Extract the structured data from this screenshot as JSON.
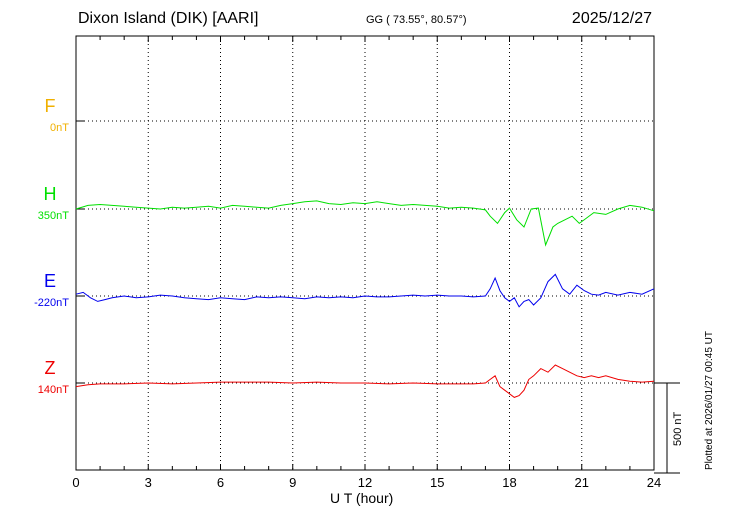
{
  "header": {
    "title": "Dixon Island (DIK)  [AARI]",
    "coords": "GG ( 73.55°,  80.57°)",
    "date": "2025/12/27"
  },
  "plotted_note": "Plotted at 2026/01/27 00:45 UT",
  "scale_bar": {
    "label": "500 nT",
    "value_nT": 500
  },
  "chart_data": {
    "type": "line",
    "xlabel": "U T (hour)",
    "xlim": [
      0,
      24
    ],
    "xticks": [
      0,
      3,
      6,
      9,
      12,
      15,
      18,
      21,
      24
    ],
    "grid": true,
    "components": [
      {
        "letter": "F",
        "baseline": "0nT",
        "color": "#f0b000",
        "values": []
      },
      {
        "letter": "H",
        "baseline": "350nT",
        "color": "#00e000",
        "values": [
          [
            0,
            0
          ],
          [
            0.5,
            20
          ],
          [
            1,
            25
          ],
          [
            1.5,
            20
          ],
          [
            2,
            15
          ],
          [
            2.5,
            10
          ],
          [
            3,
            5
          ],
          [
            3.5,
            0
          ],
          [
            4,
            10
          ],
          [
            4.5,
            5
          ],
          [
            5,
            10
          ],
          [
            5.5,
            15
          ],
          [
            6,
            5
          ],
          [
            6.5,
            20
          ],
          [
            7,
            15
          ],
          [
            7.5,
            10
          ],
          [
            8,
            5
          ],
          [
            8.5,
            20
          ],
          [
            9,
            30
          ],
          [
            9.5,
            40
          ],
          [
            10,
            45
          ],
          [
            10.5,
            30
          ],
          [
            11,
            25
          ],
          [
            11.5,
            35
          ],
          [
            12,
            30
          ],
          [
            12.5,
            40
          ],
          [
            13,
            30
          ],
          [
            13.5,
            20
          ],
          [
            14,
            25
          ],
          [
            14.5,
            20
          ],
          [
            15,
            15
          ],
          [
            15.5,
            5
          ],
          [
            16,
            10
          ],
          [
            16.5,
            5
          ],
          [
            17,
            -5
          ],
          [
            17.2,
            -40
          ],
          [
            17.5,
            -80
          ],
          [
            17.8,
            -20
          ],
          [
            18,
            5
          ],
          [
            18.3,
            -60
          ],
          [
            18.6,
            -100
          ],
          [
            18.9,
            0
          ],
          [
            19.2,
            5
          ],
          [
            19.5,
            -200
          ],
          [
            19.8,
            -100
          ],
          [
            20,
            -80
          ],
          [
            20.3,
            -60
          ],
          [
            20.6,
            -40
          ],
          [
            20.9,
            -80
          ],
          [
            21.2,
            -50
          ],
          [
            21.5,
            -20
          ],
          [
            22,
            -30
          ],
          [
            22.5,
            0
          ],
          [
            23,
            20
          ],
          [
            23.5,
            10
          ],
          [
            24,
            -10
          ]
        ]
      },
      {
        "letter": "E",
        "baseline": "-220nT",
        "color": "#0000ee",
        "values": [
          [
            0,
            10
          ],
          [
            0.3,
            20
          ],
          [
            0.6,
            -10
          ],
          [
            0.9,
            -30
          ],
          [
            1.2,
            -20
          ],
          [
            1.5,
            -10
          ],
          [
            2,
            0
          ],
          [
            2.5,
            -10
          ],
          [
            3,
            -5
          ],
          [
            3.5,
            5
          ],
          [
            4,
            0
          ],
          [
            4.5,
            -10
          ],
          [
            5,
            -15
          ],
          [
            5.5,
            -20
          ],
          [
            6,
            -10
          ],
          [
            6.5,
            -15
          ],
          [
            7,
            -20
          ],
          [
            7.5,
            -5
          ],
          [
            8,
            -10
          ],
          [
            8.5,
            -5
          ],
          [
            9,
            -10
          ],
          [
            9.5,
            -15
          ],
          [
            10,
            -5
          ],
          [
            10.5,
            -10
          ],
          [
            11,
            -5
          ],
          [
            11.5,
            -10
          ],
          [
            12,
            0
          ],
          [
            12.5,
            -5
          ],
          [
            13,
            -5
          ],
          [
            13.5,
            0
          ],
          [
            14,
            5
          ],
          [
            14.5,
            0
          ],
          [
            15,
            5
          ],
          [
            15.5,
            0
          ],
          [
            16,
            0
          ],
          [
            16.5,
            -5
          ],
          [
            17,
            0
          ],
          [
            17.2,
            40
          ],
          [
            17.4,
            100
          ],
          [
            17.6,
            30
          ],
          [
            17.8,
            -10
          ],
          [
            18,
            -30
          ],
          [
            18.2,
            -10
          ],
          [
            18.4,
            -60
          ],
          [
            18.6,
            -30
          ],
          [
            18.8,
            -20
          ],
          [
            19,
            -50
          ],
          [
            19.3,
            -10
          ],
          [
            19.6,
            80
          ],
          [
            19.9,
            120
          ],
          [
            20.2,
            40
          ],
          [
            20.5,
            10
          ],
          [
            20.8,
            60
          ],
          [
            21.1,
            30
          ],
          [
            21.4,
            10
          ],
          [
            21.7,
            5
          ],
          [
            22,
            20
          ],
          [
            22.5,
            5
          ],
          [
            23,
            20
          ],
          [
            23.5,
            10
          ],
          [
            24,
            40
          ]
        ]
      },
      {
        "letter": "Z",
        "baseline": "140nT",
        "color": "#ee0000",
        "values": [
          [
            0,
            -20
          ],
          [
            0.5,
            -10
          ],
          [
            1,
            -5
          ],
          [
            2,
            -5
          ],
          [
            3,
            0
          ],
          [
            4,
            -5
          ],
          [
            5,
            0
          ],
          [
            6,
            5
          ],
          [
            7,
            5
          ],
          [
            8,
            5
          ],
          [
            9,
            0
          ],
          [
            10,
            5
          ],
          [
            11,
            0
          ],
          [
            12,
            0
          ],
          [
            13,
            -5
          ],
          [
            14,
            0
          ],
          [
            15,
            -5
          ],
          [
            16,
            -5
          ],
          [
            16.5,
            -5
          ],
          [
            17,
            0
          ],
          [
            17.2,
            20
          ],
          [
            17.4,
            40
          ],
          [
            17.6,
            -20
          ],
          [
            17.8,
            -40
          ],
          [
            18,
            -60
          ],
          [
            18.2,
            -80
          ],
          [
            18.4,
            -70
          ],
          [
            18.6,
            -40
          ],
          [
            18.8,
            20
          ],
          [
            19,
            40
          ],
          [
            19.3,
            80
          ],
          [
            19.6,
            60
          ],
          [
            19.9,
            100
          ],
          [
            20.2,
            80
          ],
          [
            20.5,
            60
          ],
          [
            20.8,
            40
          ],
          [
            21.1,
            30
          ],
          [
            21.4,
            40
          ],
          [
            21.7,
            30
          ],
          [
            22,
            40
          ],
          [
            22.5,
            20
          ],
          [
            23,
            10
          ],
          [
            23.5,
            5
          ],
          [
            24,
            10
          ]
        ]
      }
    ]
  }
}
